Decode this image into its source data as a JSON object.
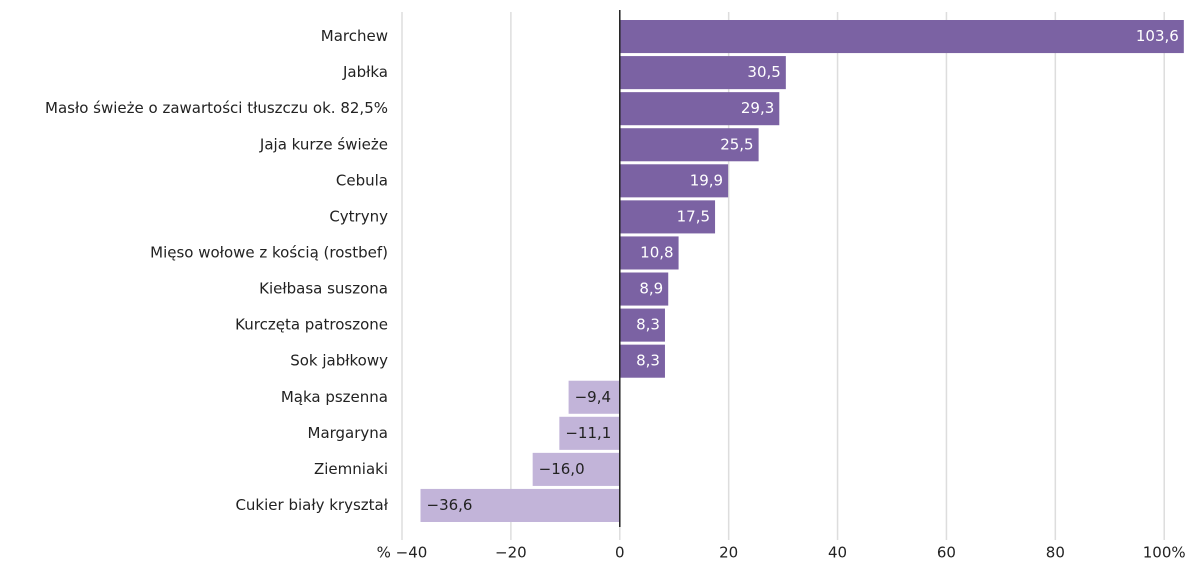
{
  "chart_data": {
    "type": "hbar",
    "categories": [
      "Marchew",
      "Jabłka",
      "Masło świeże o zawartości tłuszczu ok. 82,5%",
      "Jaja kurze świeże",
      "Cebula",
      "Cytryny",
      "Mięso wołowe z kością (rostbef)",
      "Kiełbasa suszona",
      "Kurczęta patroszone",
      "Sok jabłkowy",
      "Mąka pszenna",
      "Margaryna",
      "Ziemniaki",
      "Cukier biały kryształ"
    ],
    "values": [
      103.6,
      30.5,
      29.3,
      25.5,
      19.9,
      17.5,
      10.8,
      8.9,
      8.3,
      8.3,
      -9.4,
      -11.1,
      -16.0,
      -36.6
    ],
    "value_labels": [
      "103,6",
      "30,5",
      "29,3",
      "25,5",
      "19,9",
      "17,5",
      "10,8",
      "8,9",
      "8,3",
      "8,3",
      "−9,4",
      "−11,1",
      "−16,0",
      "−36,6"
    ],
    "color": "#7b62a3",
    "negative_color": "#c2b4d9",
    "xlim": [
      -40,
      104
    ],
    "xticks": [
      {
        "value": -40,
        "label": "% −40"
      },
      {
        "value": -20,
        "label": "−20"
      },
      0,
      20,
      40,
      60,
      80,
      {
        "value": 100,
        "label": "100%"
      }
    ],
    "grid": true
  }
}
